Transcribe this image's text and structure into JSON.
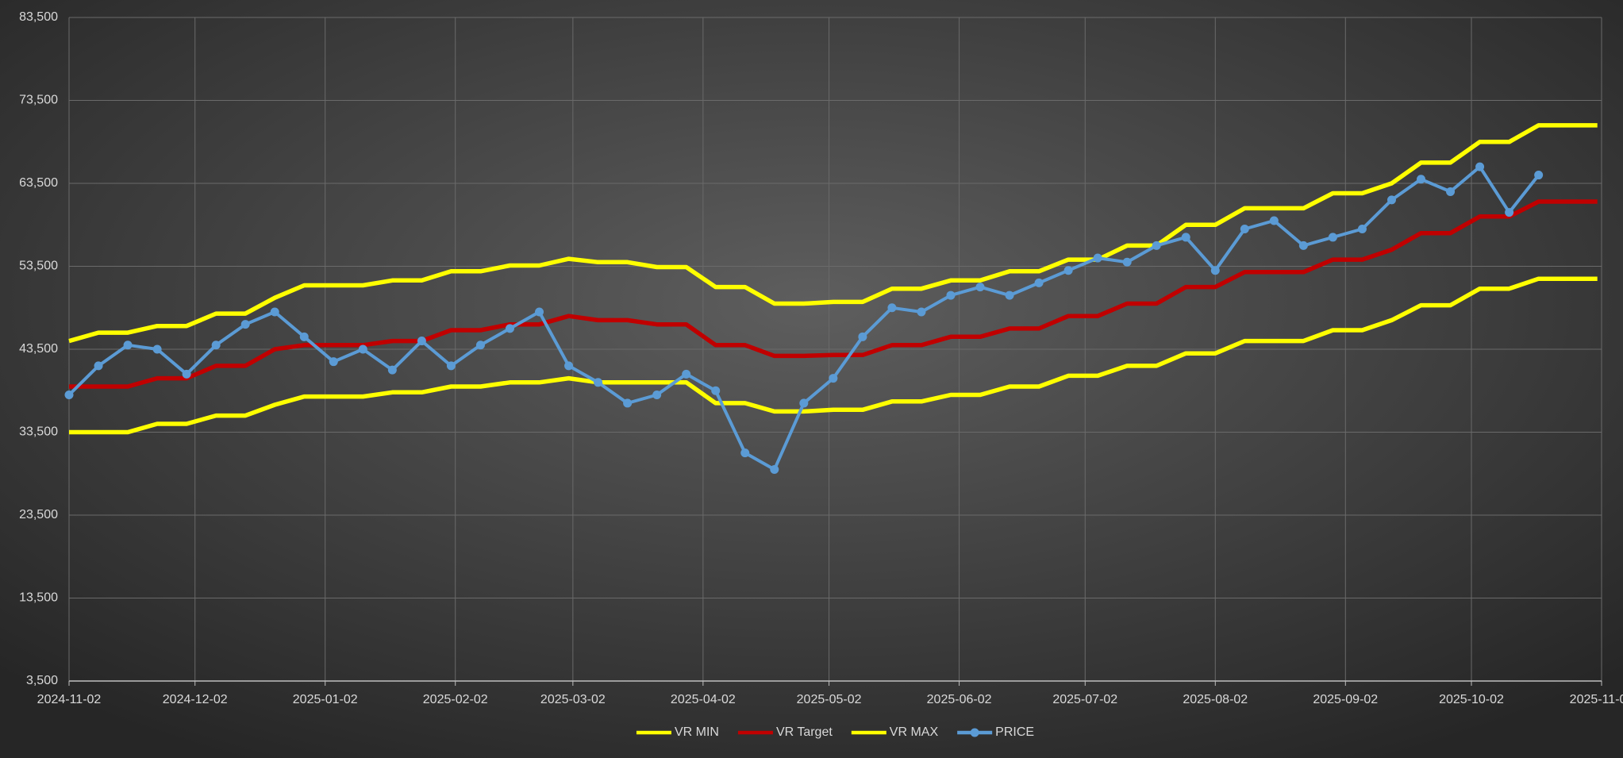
{
  "chart_data": {
    "type": "line",
    "x": [
      "2024-11-02",
      "2024-11-09",
      "2024-11-16",
      "2024-11-23",
      "2024-11-30",
      "2024-12-07",
      "2024-12-14",
      "2024-12-21",
      "2024-12-28",
      "2025-01-04",
      "2025-01-11",
      "2025-01-18",
      "2025-01-25",
      "2025-02-01",
      "2025-02-08",
      "2025-02-15",
      "2025-02-22",
      "2025-03-01",
      "2025-03-08",
      "2025-03-15",
      "2025-03-22",
      "2025-03-29",
      "2025-04-05",
      "2025-04-12",
      "2025-04-19",
      "2025-04-26",
      "2025-05-03",
      "2025-05-10",
      "2025-05-17",
      "2025-05-24",
      "2025-05-31",
      "2025-06-07",
      "2025-06-14",
      "2025-06-21",
      "2025-06-28",
      "2025-07-05",
      "2025-07-12",
      "2025-07-19",
      "2025-07-26",
      "2025-08-02",
      "2025-08-09",
      "2025-08-16",
      "2025-08-23",
      "2025-08-30",
      "2025-09-06",
      "2025-09-13",
      "2025-09-20",
      "2025-09-27",
      "2025-10-04",
      "2025-10-11",
      "2025-10-18",
      "2025-10-25",
      "2025-11-01"
    ],
    "series": [
      {
        "name": "VR MIN",
        "color": "#ffff00",
        "values": [
          33500,
          33500,
          33500,
          34500,
          34500,
          35500,
          35500,
          36800,
          37800,
          37800,
          37800,
          38300,
          38300,
          39000,
          39000,
          39500,
          39500,
          40000,
          39500,
          39500,
          39500,
          39500,
          37000,
          37000,
          36000,
          36000,
          36200,
          36200,
          37200,
          37200,
          38000,
          38000,
          39000,
          39000,
          40300,
          40300,
          41500,
          41500,
          43000,
          43000,
          44500,
          44500,
          44500,
          45800,
          45800,
          47000,
          48800,
          48800,
          50800,
          50800,
          52000,
          52000,
          52000
        ]
      },
      {
        "name": "VR Target",
        "color": "#c00000",
        "values": [
          39000,
          39000,
          39000,
          40000,
          40000,
          41500,
          41500,
          43500,
          44000,
          44000,
          44000,
          44500,
          44500,
          45800,
          45800,
          46500,
          46500,
          47500,
          47000,
          47000,
          46500,
          46500,
          44000,
          44000,
          42700,
          42700,
          42800,
          42800,
          44000,
          44000,
          45000,
          45000,
          46000,
          46000,
          47500,
          47500,
          49000,
          49000,
          51000,
          51000,
          52800,
          52800,
          52800,
          54300,
          54300,
          55500,
          57500,
          57500,
          59500,
          59500,
          61300,
          61300,
          61300
        ]
      },
      {
        "name": "VR MAX",
        "color": "#ffff00",
        "values": [
          44500,
          45500,
          45500,
          46300,
          46300,
          47800,
          47800,
          49700,
          51200,
          51200,
          51200,
          51800,
          51800,
          52900,
          52900,
          53600,
          53600,
          54400,
          54000,
          54000,
          53400,
          53400,
          51000,
          51000,
          49000,
          49000,
          49200,
          49200,
          50800,
          50800,
          51800,
          51800,
          52900,
          52900,
          54300,
          54300,
          56000,
          56000,
          58500,
          58500,
          60500,
          60500,
          60500,
          62300,
          62300,
          63500,
          66000,
          66000,
          68500,
          68500,
          70500,
          70500,
          70500
        ]
      },
      {
        "name": "PRICE",
        "color": "#5b9bd5",
        "markers": true,
        "values": [
          38000,
          41500,
          44000,
          43500,
          40500,
          44000,
          46500,
          48000,
          45000,
          42000,
          43500,
          41000,
          44500,
          41500,
          44000,
          46000,
          48000,
          41500,
          39500,
          37000,
          38000,
          40500,
          38500,
          31000,
          29000,
          37000,
          40000,
          45000,
          48500,
          48000,
          50000,
          51000,
          50000,
          51500,
          53000,
          54500,
          54000,
          56000,
          57000,
          53000,
          58000,
          59000,
          56000,
          57000,
          58000,
          61500,
          64000,
          62500,
          65500,
          60000,
          64500,
          null,
          null
        ]
      }
    ],
    "xlim": [
      "2024-11-02",
      "2025-11-02"
    ],
    "xticks": [
      "2024-11-02",
      "2024-12-02",
      "2025-01-02",
      "2025-02-02",
      "2025-03-02",
      "2025-04-02",
      "2025-05-02",
      "2025-06-02",
      "2025-07-02",
      "2025-08-02",
      "2025-09-02",
      "2025-10-02",
      "2025-11-02"
    ],
    "ylim": [
      3500,
      83500
    ],
    "yticks": [
      {
        "value": 3500,
        "label": "3,500"
      },
      {
        "value": 13500,
        "label": "13,500"
      },
      {
        "value": 23500,
        "label": "23,500"
      },
      {
        "value": 33500,
        "label": "33,500"
      },
      {
        "value": 43500,
        "label": "43,500"
      },
      {
        "value": 53500,
        "label": "53,500"
      },
      {
        "value": 63500,
        "label": "63,500"
      },
      {
        "value": 73500,
        "label": "73,500"
      },
      {
        "value": 83500,
        "label": "83,500"
      }
    ],
    "grid": true,
    "legend": "bottom"
  }
}
